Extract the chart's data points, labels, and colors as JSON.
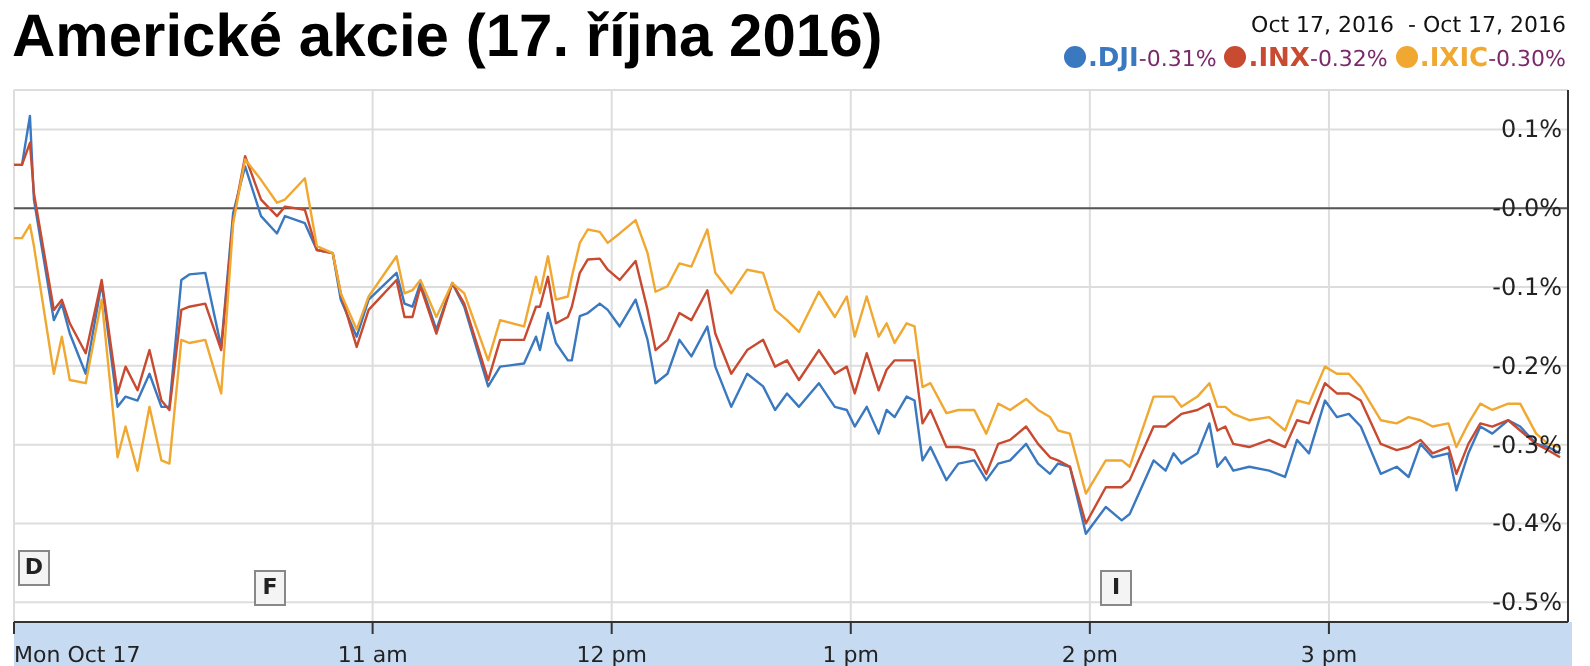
{
  "chart_data": {
    "type": "line",
    "title": "Americké akcie (17. října 2016)",
    "subtitle": "Oct 17, 2016  - Oct 17, 2016",
    "x": [
      "2016-10-17T09:30",
      "2016-10-17T09:32",
      "2016-10-17T09:34",
      "2016-10-17T09:35",
      "2016-10-17T09:40",
      "2016-10-17T09:42",
      "2016-10-17T09:44",
      "2016-10-17T09:48",
      "2016-10-17T09:52",
      "2016-10-17T09:56",
      "2016-10-17T09:58",
      "2016-10-17T10:01",
      "2016-10-17T10:04",
      "2016-10-17T10:07",
      "2016-10-17T10:09",
      "2016-10-17T10:12",
      "2016-10-17T10:14",
      "2016-10-17T10:18",
      "2016-10-17T10:22",
      "2016-10-17T10:25",
      "2016-10-17T10:28",
      "2016-10-17T10:32",
      "2016-10-17T10:36",
      "2016-10-17T10:38",
      "2016-10-17T10:43",
      "2016-10-17T10:46",
      "2016-10-17T10:50",
      "2016-10-17T10:52",
      "2016-10-17T10:56",
      "2016-10-17T10:59",
      "2016-10-17T11:06",
      "2016-10-17T11:08",
      "2016-10-17T11:10",
      "2016-10-17T11:12",
      "2016-10-17T11:16",
      "2016-10-17T11:20",
      "2016-10-17T11:23",
      "2016-10-17T11:29",
      "2016-10-17T11:32",
      "2016-10-17T11:38",
      "2016-10-17T11:41",
      "2016-10-17T11:42",
      "2016-10-17T11:44",
      "2016-10-17T11:46",
      "2016-10-17T11:49",
      "2016-10-17T11:50",
      "2016-10-17T11:52",
      "2016-10-17T11:54",
      "2016-10-17T11:57",
      "2016-10-17T11:59",
      "2016-10-17T12:02",
      "2016-10-17T12:06",
      "2016-10-17T12:09",
      "2016-10-17T12:11",
      "2016-10-17T12:14",
      "2016-10-17T12:17",
      "2016-10-17T12:20",
      "2016-10-17T12:24",
      "2016-10-17T12:26",
      "2016-10-17T12:30",
      "2016-10-17T12:34",
      "2016-10-17T12:38",
      "2016-10-17T12:41",
      "2016-10-17T12:44",
      "2016-10-17T12:47",
      "2016-10-17T12:52",
      "2016-10-17T12:56",
      "2016-10-17T12:59",
      "2016-10-17T13:01",
      "2016-10-17T13:04",
      "2016-10-17T13:07",
      "2016-10-17T13:09",
      "2016-10-17T13:11",
      "2016-10-17T13:14",
      "2016-10-17T13:16",
      "2016-10-17T13:18",
      "2016-10-17T13:20",
      "2016-10-17T13:24",
      "2016-10-17T13:27",
      "2016-10-17T13:31",
      "2016-10-17T13:34",
      "2016-10-17T13:37",
      "2016-10-17T13:40",
      "2016-10-17T13:44",
      "2016-10-17T13:47",
      "2016-10-17T13:50",
      "2016-10-17T13:52",
      "2016-10-17T13:55",
      "2016-10-17T13:59",
      "2016-10-17T14:04",
      "2016-10-17T14:08",
      "2016-10-17T14:10",
      "2016-10-17T14:16",
      "2016-10-17T14:19",
      "2016-10-17T14:21",
      "2016-10-17T14:23",
      "2016-10-17T14:27",
      "2016-10-17T14:30",
      "2016-10-17T14:32",
      "2016-10-17T14:34",
      "2016-10-17T14:36",
      "2016-10-17T14:40",
      "2016-10-17T14:45",
      "2016-10-17T14:49",
      "2016-10-17T14:52",
      "2016-10-17T14:55",
      "2016-10-17T14:59",
      "2016-10-17T15:02",
      "2016-10-17T15:05",
      "2016-10-17T15:08",
      "2016-10-17T15:13",
      "2016-10-17T15:17",
      "2016-10-17T15:20",
      "2016-10-17T15:23",
      "2016-10-17T15:26",
      "2016-10-17T15:30",
      "2016-10-17T15:32",
      "2016-10-17T15:35",
      "2016-10-17T15:38",
      "2016-10-17T15:41",
      "2016-10-17T15:45",
      "2016-10-17T15:48",
      "2016-10-17T15:52",
      "2016-10-17T15:55",
      "2016-10-17T15:58"
    ],
    "series": [
      {
        "name": ".DJI",
        "color": "#3a78c0",
        "values": [
          0.055,
          0.055,
          0.117,
          0.011,
          -0.142,
          -0.121,
          -0.159,
          -0.21,
          -0.095,
          -0.252,
          -0.239,
          -0.244,
          -0.21,
          -0.252,
          -0.252,
          -0.091,
          -0.084,
          -0.082,
          -0.176,
          -0.006,
          0.053,
          -0.01,
          -0.032,
          -0.01,
          -0.019,
          -0.053,
          -0.057,
          -0.116,
          -0.163,
          -0.116,
          -0.082,
          -0.121,
          -0.125,
          -0.095,
          -0.154,
          -0.095,
          -0.125,
          -0.226,
          -0.201,
          -0.197,
          -0.163,
          -0.18,
          -0.133,
          -0.171,
          -0.193,
          -0.193,
          -0.137,
          -0.133,
          -0.121,
          -0.129,
          -0.15,
          -0.116,
          -0.167,
          -0.222,
          -0.21,
          -0.167,
          -0.188,
          -0.15,
          -0.201,
          -0.252,
          -0.21,
          -0.226,
          -0.256,
          -0.235,
          -0.252,
          -0.222,
          -0.252,
          -0.256,
          -0.277,
          -0.252,
          -0.286,
          -0.256,
          -0.265,
          -0.239,
          -0.244,
          -0.32,
          -0.303,
          -0.345,
          -0.324,
          -0.32,
          -0.345,
          -0.324,
          -0.32,
          -0.299,
          -0.324,
          -0.337,
          -0.324,
          -0.328,
          -0.413,
          -0.379,
          -0.396,
          -0.388,
          -0.32,
          -0.333,
          -0.311,
          -0.324,
          -0.311,
          -0.273,
          -0.328,
          -0.316,
          -0.333,
          -0.328,
          -0.333,
          -0.341,
          -0.294,
          -0.311,
          -0.244,
          -0.265,
          -0.261,
          -0.277,
          -0.337,
          -0.328,
          -0.341,
          -0.299,
          -0.316,
          -0.311,
          -0.358,
          -0.311,
          -0.277,
          -0.286,
          -0.269,
          -0.277,
          -0.299,
          -0.303,
          -0.311
        ]
      },
      {
        "name": ".INX",
        "color": "#c84a30",
        "values": [
          0.055,
          0.055,
          0.083,
          0.019,
          -0.129,
          -0.116,
          -0.146,
          -0.184,
          -0.091,
          -0.235,
          -0.201,
          -0.231,
          -0.18,
          -0.244,
          -0.256,
          -0.129,
          -0.125,
          -0.121,
          -0.18,
          -0.015,
          0.066,
          0.011,
          -0.01,
          0.002,
          -0.002,
          -0.053,
          -0.057,
          -0.108,
          -0.176,
          -0.129,
          -0.091,
          -0.138,
          -0.138,
          -0.099,
          -0.159,
          -0.095,
          -0.121,
          -0.218,
          -0.167,
          -0.167,
          -0.125,
          -0.125,
          -0.087,
          -0.146,
          -0.138,
          -0.125,
          -0.082,
          -0.065,
          -0.064,
          -0.078,
          -0.091,
          -0.067,
          -0.129,
          -0.18,
          -0.167,
          -0.133,
          -0.142,
          -0.104,
          -0.159,
          -0.21,
          -0.18,
          -0.167,
          -0.201,
          -0.193,
          -0.218,
          -0.18,
          -0.21,
          -0.201,
          -0.235,
          -0.184,
          -0.231,
          -0.205,
          -0.193,
          -0.193,
          -0.193,
          -0.273,
          -0.256,
          -0.303,
          -0.303,
          -0.307,
          -0.337,
          -0.299,
          -0.294,
          -0.277,
          -0.299,
          -0.316,
          -0.32,
          -0.328,
          -0.4,
          -0.354,
          -0.354,
          -0.345,
          -0.277,
          -0.277,
          -0.269,
          -0.261,
          -0.256,
          -0.248,
          -0.282,
          -0.277,
          -0.299,
          -0.303,
          -0.294,
          -0.303,
          -0.269,
          -0.273,
          -0.222,
          -0.235,
          -0.235,
          -0.244,
          -0.299,
          -0.307,
          -0.303,
          -0.294,
          -0.311,
          -0.303,
          -0.337,
          -0.299,
          -0.273,
          -0.277,
          -0.269,
          -0.282,
          -0.299,
          -0.307,
          -0.316
        ]
      },
      {
        "name": ".IXIC",
        "color": "#f0a830",
        "values": [
          -0.038,
          -0.038,
          -0.021,
          -0.048,
          -0.21,
          -0.163,
          -0.218,
          -0.222,
          -0.116,
          -0.316,
          -0.277,
          -0.333,
          -0.252,
          -0.32,
          -0.324,
          -0.167,
          -0.171,
          -0.167,
          -0.235,
          -0.019,
          0.062,
          0.036,
          0.007,
          0.011,
          0.038,
          -0.048,
          -0.057,
          -0.108,
          -0.154,
          -0.112,
          -0.061,
          -0.108,
          -0.104,
          -0.091,
          -0.138,
          -0.095,
          -0.108,
          -0.193,
          -0.142,
          -0.15,
          -0.087,
          -0.108,
          -0.061,
          -0.116,
          -0.112,
          -0.087,
          -0.044,
          -0.027,
          -0.03,
          -0.044,
          -0.032,
          -0.015,
          -0.057,
          -0.106,
          -0.099,
          -0.07,
          -0.074,
          -0.027,
          -0.082,
          -0.108,
          -0.078,
          -0.082,
          -0.129,
          -0.142,
          -0.157,
          -0.106,
          -0.138,
          -0.112,
          -0.163,
          -0.112,
          -0.163,
          -0.146,
          -0.171,
          -0.146,
          -0.15,
          -0.227,
          -0.222,
          -0.26,
          -0.256,
          -0.256,
          -0.286,
          -0.248,
          -0.256,
          -0.242,
          -0.256,
          -0.265,
          -0.282,
          -0.286,
          -0.362,
          -0.32,
          -0.32,
          -0.328,
          -0.239,
          -0.239,
          -0.239,
          -0.252,
          -0.239,
          -0.222,
          -0.252,
          -0.252,
          -0.261,
          -0.269,
          -0.265,
          -0.282,
          -0.244,
          -0.248,
          -0.201,
          -0.21,
          -0.21,
          -0.227,
          -0.269,
          -0.273,
          -0.265,
          -0.269,
          -0.277,
          -0.273,
          -0.303,
          -0.273,
          -0.248,
          -0.256,
          -0.248,
          -0.248,
          -0.286,
          -0.299,
          -0.303
        ]
      }
    ],
    "xlim": [
      "2016-10-17T09:30",
      "2016-10-17T16:00"
    ],
    "xticks": [
      {
        "value": "2016-10-17T09:30",
        "label": "Mon Oct 17"
      },
      {
        "value": "2016-10-17T11:00",
        "label": "11 am"
      },
      {
        "value": "2016-10-17T12:00",
        "label": "12 pm"
      },
      {
        "value": "2016-10-17T13:00",
        "label": "1 pm"
      },
      {
        "value": "2016-10-17T14:00",
        "label": "2 pm"
      },
      {
        "value": "2016-10-17T15:00",
        "label": "3 pm"
      }
    ],
    "ylim": [
      -0.525,
      0.15
    ],
    "yticks": [
      {
        "value": 0.1,
        "label": "0.1%"
      },
      {
        "value": 0,
        "label": "-0.0%"
      },
      {
        "value": -0.1,
        "label": "-0.1%"
      },
      {
        "value": -0.2,
        "label": "-0.2%"
      },
      {
        "value": -0.3,
        "label": "-0.3%"
      },
      {
        "value": -0.4,
        "label": "-0.4%"
      },
      {
        "value": -0.5,
        "label": "-0.5%"
      }
    ],
    "ref_lines": [
      {
        "axis": "y",
        "value": 0,
        "color": "#555555"
      }
    ],
    "annotations": [
      "-0.31%",
      "-0.32%",
      "-0.30%",
      "D",
      "F",
      "I"
    ],
    "grid": true,
    "legend": "top right",
    "marker": "none",
    "line_style": "solid"
  }
}
